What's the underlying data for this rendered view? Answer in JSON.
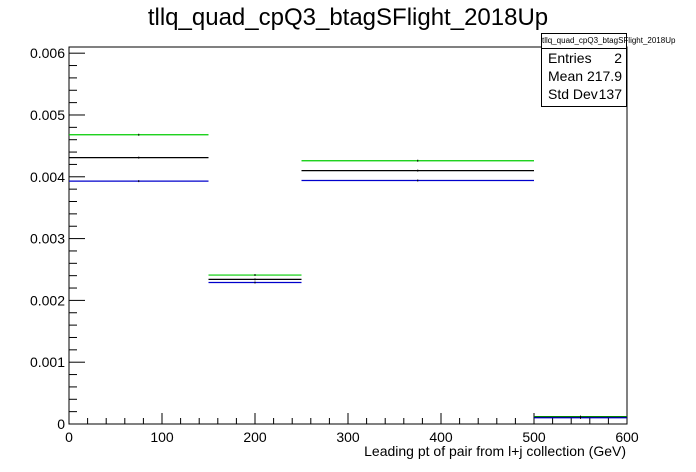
{
  "chart_data": {
    "type": "histogram-step",
    "title": "tllq_quad_cpQ3_btagSFlight_2018Up",
    "xlabel": "Leading pt of pair from l+j collection (GeV)",
    "ylabel": "",
    "xlim": [
      0,
      600
    ],
    "ylim": [
      0,
      0.0061
    ],
    "x_ticks": [
      "0",
      "100",
      "200",
      "300",
      "400",
      "500",
      "600"
    ],
    "x_tick_values": [
      0,
      100,
      200,
      300,
      400,
      500,
      600
    ],
    "y_ticks": [
      "0",
      "0.001",
      "0.002",
      "0.003",
      "0.004",
      "0.005",
      "0.006"
    ],
    "y_tick_values": [
      0,
      0.001,
      0.002,
      0.003,
      0.004,
      0.005,
      0.006
    ],
    "bin_edges": [
      0,
      150,
      250,
      500,
      600
    ],
    "series": [
      {
        "color": "#00cc00",
        "values": [
          0.00468,
          0.00241,
          0.00426,
          0.00012
        ]
      },
      {
        "color": "#000000",
        "values": [
          0.00431,
          0.00234,
          0.0041,
          0.00011
        ]
      },
      {
        "color": "#0000cc",
        "values": [
          0.00393,
          0.00229,
          0.00394,
          0.0001
        ]
      }
    ],
    "stats_box": {
      "name": "tllq_quad_cpQ3_btagSFlight_2018Up",
      "entries_label": "Entries",
      "entries": "2",
      "mean_label": "Mean",
      "mean": "217.9",
      "stddev_label": "Std Dev",
      "stddev": "137"
    },
    "grid": false,
    "legend": "none"
  }
}
